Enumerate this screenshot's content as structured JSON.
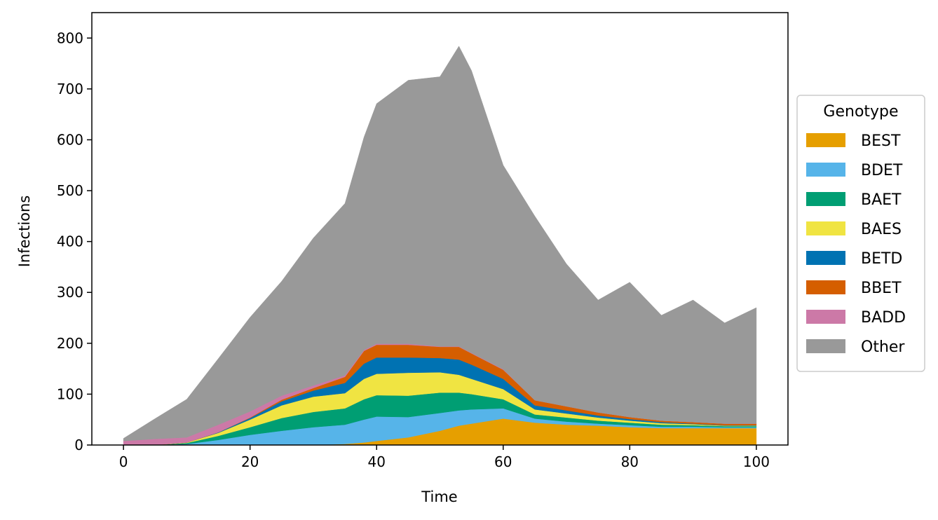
{
  "chart_data": {
    "type": "area",
    "stacked": true,
    "xlabel": "Time",
    "ylabel": "Infections",
    "xlim": [
      -5,
      105
    ],
    "ylim": [
      0,
      850
    ],
    "xticks": [
      0,
      20,
      40,
      60,
      80,
      100
    ],
    "yticks": [
      0,
      100,
      200,
      300,
      400,
      500,
      600,
      700,
      800
    ],
    "grid": false,
    "legend": {
      "title": "Genotype",
      "placement": "right"
    },
    "x": [
      0,
      5,
      10,
      15,
      20,
      25,
      30,
      35,
      38,
      40,
      45,
      50,
      53,
      55,
      60,
      65,
      70,
      75,
      80,
      85,
      90,
      95,
      100
    ],
    "series": [
      {
        "name": "BEST",
        "color": "#E69F00",
        "values": [
          0,
          0,
          0,
          0,
          0,
          0,
          0,
          2,
          5,
          8,
          15,
          28,
          38,
          42,
          52,
          44,
          40,
          38,
          35,
          33,
          33,
          33,
          33
        ]
      },
      {
        "name": "BDET",
        "color": "#56B4E9",
        "values": [
          0,
          0,
          2,
          10,
          20,
          28,
          35,
          38,
          45,
          48,
          40,
          35,
          30,
          28,
          20,
          8,
          6,
          4,
          4,
          3,
          3,
          2,
          2
        ]
      },
      {
        "name": "BAET",
        "color": "#009E73",
        "values": [
          0,
          0,
          2,
          8,
          15,
          25,
          30,
          32,
          40,
          42,
          42,
          40,
          35,
          30,
          18,
          8,
          8,
          6,
          5,
          4,
          3,
          2,
          2
        ]
      },
      {
        "name": "BAES",
        "color": "#F0E442",
        "values": [
          0,
          0,
          1,
          6,
          15,
          25,
          30,
          30,
          40,
          42,
          45,
          40,
          35,
          30,
          20,
          10,
          8,
          6,
          4,
          3,
          2,
          1,
          1
        ]
      },
      {
        "name": "BETD",
        "color": "#0072B2",
        "values": [
          0,
          0,
          0,
          1,
          3,
          8,
          12,
          20,
          30,
          32,
          30,
          28,
          30,
          28,
          20,
          8,
          6,
          4,
          3,
          2,
          1,
          1,
          1
        ]
      },
      {
        "name": "BBET",
        "color": "#D55E00",
        "values": [
          0,
          0,
          0,
          0,
          1,
          3,
          5,
          12,
          25,
          25,
          25,
          22,
          25,
          22,
          18,
          10,
          8,
          6,
          4,
          3,
          3,
          3,
          3
        ]
      },
      {
        "name": "BADD",
        "color": "#CC79A7",
        "values": [
          8,
          12,
          10,
          15,
          12,
          8,
          5,
          3,
          2,
          2,
          2,
          1,
          1,
          1,
          1,
          0,
          0,
          0,
          0,
          0,
          0,
          0,
          0
        ]
      },
      {
        "name": "Other",
        "color": "#999999",
        "values": [
          5,
          40,
          75,
          130,
          185,
          225,
          290,
          338,
          418,
          472,
          518,
          530,
          590,
          555,
          401,
          362,
          280,
          221,
          265,
          207,
          240,
          198,
          228
        ]
      }
    ]
  }
}
